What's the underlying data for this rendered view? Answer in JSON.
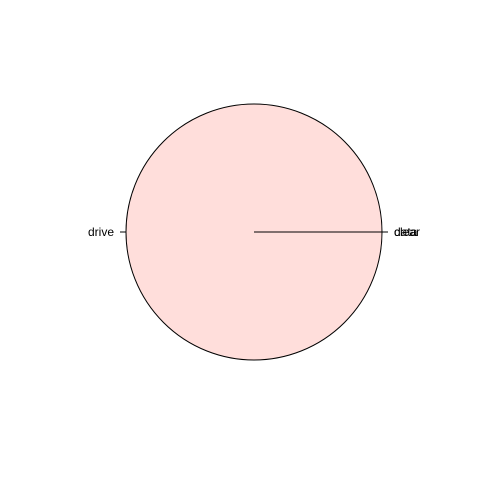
{
  "chart_data": {
    "type": "pie",
    "title": "",
    "slices": [
      {
        "label": "drive",
        "value": 1.0,
        "color": "#ffdedb"
      },
      {
        "label": "data",
        "value": 0.0,
        "color": "#e5fbe0"
      },
      {
        "label": "clear",
        "value": 0.0,
        "color": "#dbe9fb"
      }
    ],
    "border_color": "#000000",
    "legend": "none"
  }
}
